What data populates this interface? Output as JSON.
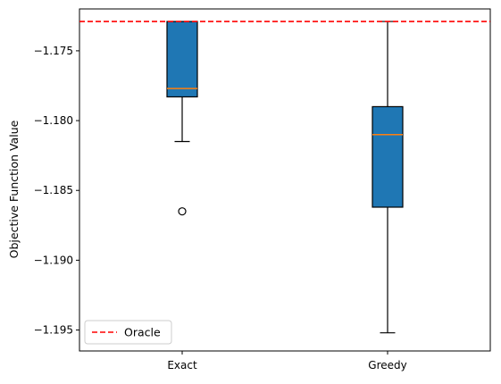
{
  "chart_data": {
    "type": "boxplot",
    "title": "",
    "xlabel": "",
    "ylabel": "Objective Function Value",
    "ylim": [
      -1.1965,
      -1.172
    ],
    "yticks": [
      -1.175,
      -1.18,
      -1.185,
      -1.19,
      -1.195
    ],
    "ytick_labels": [
      "−1.175",
      "−1.180",
      "−1.185",
      "−1.190",
      "−1.195"
    ],
    "grid": false,
    "legend": {
      "position": "lower-left",
      "entries": [
        {
          "label": "Oracle",
          "style": "dashed",
          "color": "#e41a1c"
        }
      ]
    },
    "reference_line": {
      "name": "Oracle",
      "y": -1.1729,
      "color": "#ff0000",
      "style": "dashed"
    },
    "categories": [
      "Exact",
      "Greedy"
    ],
    "boxes": [
      {
        "name": "Exact",
        "whisker_low": -1.1815,
        "q1": -1.1783,
        "median": -1.1777,
        "q3": -1.1729,
        "whisker_high": -1.1729,
        "outliers": [
          -1.1865
        ]
      },
      {
        "name": "Greedy",
        "whisker_low": -1.1952,
        "q1": -1.1862,
        "median": -1.181,
        "q3": -1.179,
        "whisker_high": -1.1729,
        "outliers": []
      }
    ],
    "colors": {
      "box_fill": "#1f77b4",
      "median": "#ff7f0e",
      "oracle": "#ff0000"
    }
  }
}
